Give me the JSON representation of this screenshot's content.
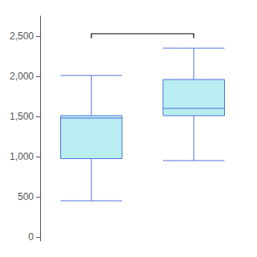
{
  "chart_data": {
    "type": "boxplot",
    "categories": [
      null,
      null
    ],
    "values": [
      [
        450,
        975,
        1480,
        1510,
        2010
      ],
      [
        950,
        1510,
        1600,
        1960,
        2350
      ]
    ],
    "color": "#b8eef2",
    "ylim": [
      -50,
      2750
    ],
    "yticks": [
      0,
      500,
      1000,
      1500,
      2000,
      2500
    ],
    "grid": false,
    "tick_labels": "y",
    "bracket": {
      "y": 2530,
      "y_end": 2475,
      "color": "#000000"
    }
  }
}
